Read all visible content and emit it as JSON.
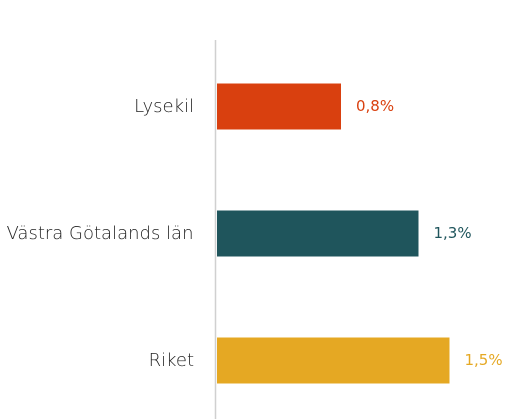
{
  "chart_data": {
    "type": "bar",
    "orientation": "horizontal",
    "categories": [
      "Lysekil",
      "Västra Götalands län",
      "Riket"
    ],
    "values": [
      0.8,
      1.3,
      1.5
    ],
    "value_labels": [
      "0,8%",
      "1,3%",
      "1,5%"
    ],
    "colors": [
      "#d9400f",
      "#1f555c",
      "#e5a823"
    ],
    "xlim": [
      0,
      1.6
    ]
  }
}
